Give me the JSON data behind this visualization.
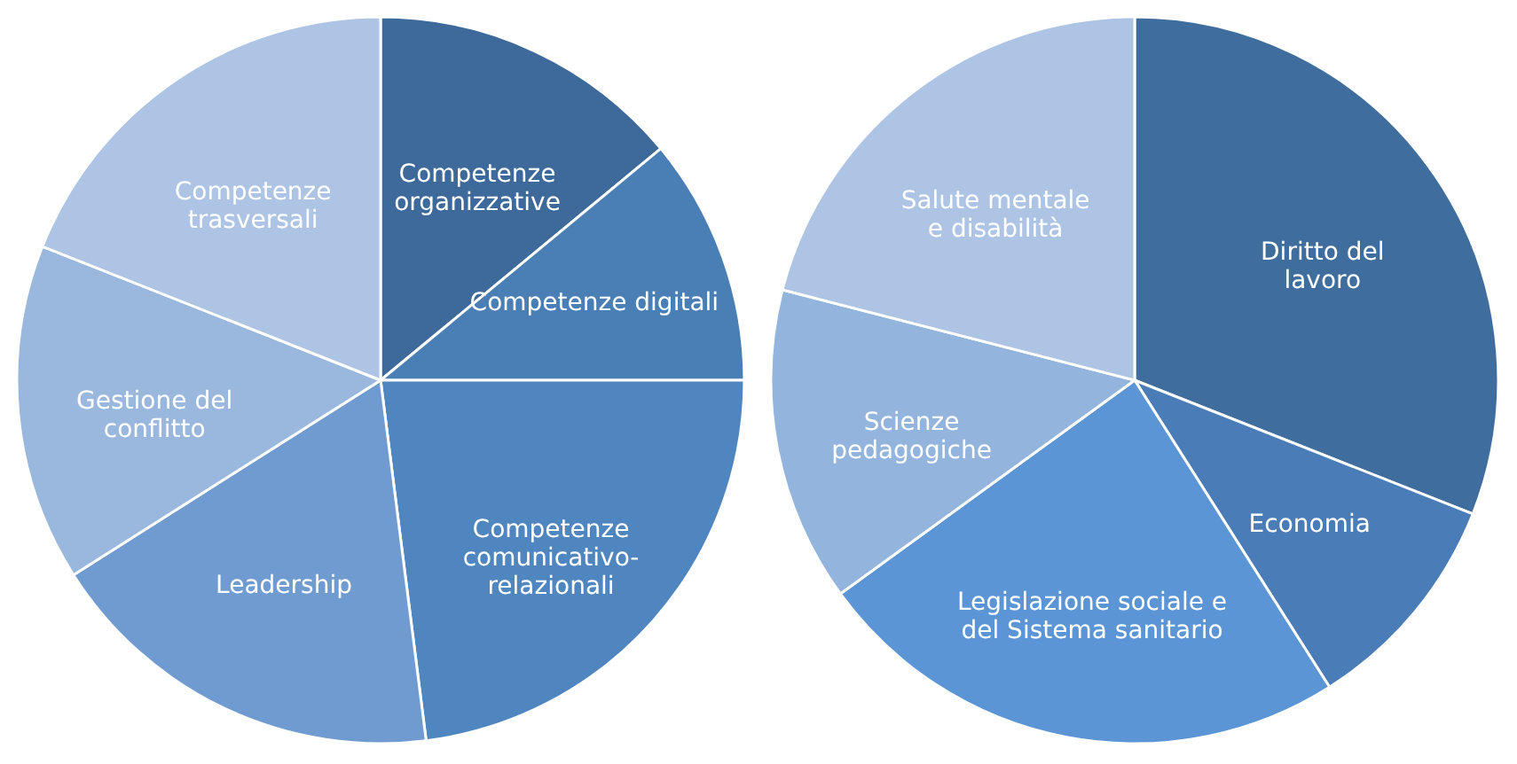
{
  "chart_data": [
    {
      "type": "pie",
      "categories": [
        "Competenze\norganizzative",
        "Competenze digitali",
        "Competenze\ncomunicativo-\nrelazionali",
        "Leadership",
        "Gestione del\nconflitto",
        "Competenze\ntrasversali"
      ],
      "values": [
        14,
        11,
        23,
        18,
        15,
        19
      ],
      "colors": [
        "#3d6a9a",
        "#4a7fb5",
        "#4f86c0",
        "#6f9bd0",
        "#9ab7dd",
        "#adc4e4"
      ],
      "legend": false
    },
    {
      "type": "pie",
      "categories": [
        "Diritto del\nlavoro",
        "Economia",
        "Legislazione sociale e\ndel Sistema sanitario",
        "Scienze\npedagogiche",
        "Salute mentale\ne disabilità"
      ],
      "values": [
        31,
        10,
        24,
        14,
        21
      ],
      "colors": [
        "#3f6e9e",
        "#4a7db8",
        "#5b95d5",
        "#93b4dc",
        "#adc4e4"
      ],
      "legend": false
    }
  ]
}
